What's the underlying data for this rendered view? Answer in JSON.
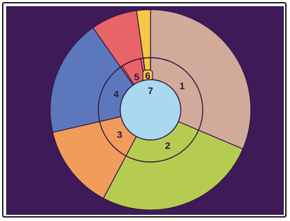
{
  "diagram": {
    "background_color": "#3e1b58",
    "segments": [
      {
        "id": "1",
        "label": "1",
        "color": "#d2aa9c"
      },
      {
        "id": "2",
        "label": "2",
        "color": "#b6cc51"
      },
      {
        "id": "3",
        "label": "3",
        "color": "#f19c5b"
      },
      {
        "id": "4",
        "label": "4",
        "color": "#5d77bd"
      },
      {
        "id": "5",
        "label": "5",
        "color": "#e86466"
      },
      {
        "id": "6",
        "label": "6",
        "color": "#f5c943"
      }
    ],
    "center": {
      "label": "7",
      "color": "#a8d9ef"
    },
    "outline_color": "#2b1740"
  }
}
